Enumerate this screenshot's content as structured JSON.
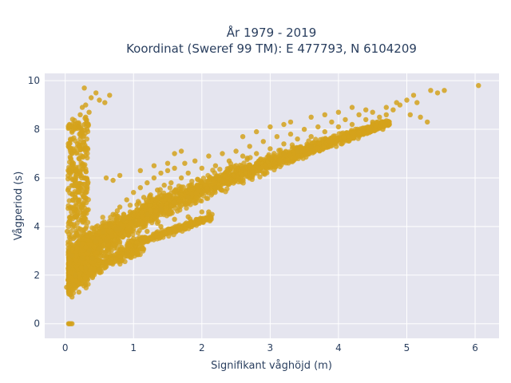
{
  "chart_data": {
    "type": "scatter",
    "title": [
      "År 1979 - 2019",
      "Koordinat (Sweref 99 TM): E 477793, N 6104209"
    ],
    "xlabel": "Signifikant våghöjd (m)",
    "ylabel": "Vågperiod (s)",
    "xlim": [
      -0.3,
      6.35
    ],
    "ylim": [
      -0.6,
      10.3
    ],
    "xticks": [
      0,
      1,
      2,
      3,
      4,
      5,
      6
    ],
    "yticks": [
      0,
      2,
      4,
      6,
      8,
      10
    ],
    "grid": true,
    "legend": "none",
    "colors": {
      "marker": "#d4a21c",
      "plot_bg": "#e5e5ef",
      "grid": "#ffffff",
      "text": "#2a3f5f"
    },
    "series": [
      {
        "marker_color": "#d4a21c",
        "points": [
          [
            0.05,
            0.0
          ],
          [
            0.06,
            0.0
          ],
          [
            0.08,
            0.0
          ],
          [
            0.1,
            0.0
          ],
          [
            0.02,
            1.5
          ],
          [
            0.04,
            1.8
          ],
          [
            0.05,
            2.3
          ],
          [
            0.08,
            1.2
          ],
          [
            0.1,
            1.1
          ],
          [
            0.12,
            1.6
          ],
          [
            0.05,
            3.0
          ],
          [
            0.03,
            3.8
          ],
          [
            0.06,
            4.2
          ],
          [
            0.1,
            2.8
          ],
          [
            0.15,
            2.0
          ],
          [
            0.12,
            3.5
          ],
          [
            0.08,
            4.8
          ],
          [
            0.04,
            5.5
          ],
          [
            0.06,
            6.3
          ],
          [
            0.1,
            7.0
          ],
          [
            0.12,
            6.6
          ],
          [
            0.15,
            5.9
          ],
          [
            0.18,
            7.4
          ],
          [
            0.2,
            8.1
          ],
          [
            0.22,
            8.6
          ],
          [
            0.25,
            8.9
          ],
          [
            0.24,
            7.9
          ],
          [
            0.26,
            7.2
          ],
          [
            0.28,
            8.2
          ],
          [
            0.3,
            8.5
          ],
          [
            0.32,
            8.0
          ],
          [
            0.35,
            8.7
          ],
          [
            0.28,
            9.7
          ],
          [
            0.38,
            9.3
          ],
          [
            0.45,
            9.5
          ],
          [
            0.5,
            9.2
          ],
          [
            0.65,
            9.4
          ],
          [
            0.58,
            9.1
          ],
          [
            0.3,
            9.0
          ],
          [
            0.2,
            6.8
          ],
          [
            0.18,
            5.1
          ],
          [
            0.24,
            6.0
          ],
          [
            0.3,
            5.4
          ],
          [
            0.15,
            4.4
          ],
          [
            0.2,
            3.3
          ],
          [
            0.25,
            2.7
          ],
          [
            0.3,
            2.3
          ],
          [
            0.35,
            3.0
          ],
          [
            0.4,
            2.7
          ],
          [
            0.45,
            3.4
          ],
          [
            0.5,
            3.1
          ],
          [
            0.55,
            3.8
          ],
          [
            0.6,
            3.4
          ],
          [
            0.65,
            4.1
          ],
          [
            0.7,
            4.5
          ],
          [
            0.75,
            3.9
          ],
          [
            0.8,
            4.8
          ],
          [
            0.85,
            4.3
          ],
          [
            0.9,
            5.1
          ],
          [
            0.95,
            4.6
          ],
          [
            1.0,
            5.4
          ],
          [
            1.05,
            4.9
          ],
          [
            1.1,
            5.6
          ],
          [
            1.15,
            5.2
          ],
          [
            1.2,
            5.8
          ],
          [
            1.25,
            5.3
          ],
          [
            1.3,
            6.0
          ],
          [
            1.35,
            5.5
          ],
          [
            1.4,
            6.2
          ],
          [
            1.45,
            5.7
          ],
          [
            1.5,
            6.3
          ],
          [
            1.55,
            5.8
          ],
          [
            1.6,
            6.4
          ],
          [
            1.7,
            6.0
          ],
          [
            1.75,
            6.6
          ],
          [
            1.8,
            6.2
          ],
          [
            1.9,
            6.7
          ],
          [
            2.0,
            6.4
          ],
          [
            2.1,
            6.9
          ],
          [
            2.2,
            6.5
          ],
          [
            2.3,
            7.0
          ],
          [
            2.4,
            6.7
          ],
          [
            2.5,
            7.1
          ],
          [
            2.6,
            6.9
          ],
          [
            2.7,
            7.3
          ],
          [
            2.8,
            7.0
          ],
          [
            2.9,
            7.5
          ],
          [
            3.0,
            7.2
          ],
          [
            3.1,
            7.7
          ],
          [
            3.2,
            7.4
          ],
          [
            3.3,
            7.8
          ],
          [
            3.4,
            7.6
          ],
          [
            3.5,
            8.0
          ],
          [
            3.6,
            7.7
          ],
          [
            3.7,
            8.1
          ],
          [
            3.8,
            7.9
          ],
          [
            3.9,
            8.3
          ],
          [
            4.0,
            8.1
          ],
          [
            4.1,
            8.4
          ],
          [
            4.2,
            8.2
          ],
          [
            4.3,
            8.6
          ],
          [
            4.4,
            8.4
          ],
          [
            4.5,
            8.7
          ],
          [
            4.6,
            8.5
          ],
          [
            4.7,
            8.9
          ],
          [
            4.8,
            8.8
          ],
          [
            4.85,
            9.1
          ],
          [
            4.9,
            9.0
          ],
          [
            5.0,
            9.2
          ],
          [
            5.05,
            8.6
          ],
          [
            5.1,
            9.4
          ],
          [
            5.15,
            9.1
          ],
          [
            5.2,
            8.5
          ],
          [
            5.3,
            8.3
          ],
          [
            5.35,
            9.6
          ],
          [
            5.45,
            9.5
          ],
          [
            5.55,
            9.6
          ],
          [
            6.05,
            9.8
          ],
          [
            4.5,
            8.3
          ],
          [
            4.7,
            8.6
          ],
          [
            4.65,
            8.0
          ],
          [
            4.4,
            8.8
          ],
          [
            4.2,
            8.9
          ],
          [
            0.9,
            2.9
          ],
          [
            1.0,
            3.5
          ],
          [
            1.2,
            3.8
          ],
          [
            1.4,
            4.0
          ],
          [
            1.6,
            4.3
          ],
          [
            1.8,
            4.4
          ],
          [
            2.0,
            4.6
          ],
          [
            2.1,
            4.5
          ],
          [
            1.5,
            6.6
          ],
          [
            1.7,
            7.1
          ],
          [
            1.6,
            7.0
          ],
          [
            1.3,
            6.5
          ],
          [
            1.1,
            6.3
          ],
          [
            0.8,
            6.1
          ],
          [
            0.7,
            5.9
          ],
          [
            0.6,
            6.0
          ],
          [
            3.2,
            8.2
          ],
          [
            3.3,
            8.3
          ],
          [
            3.0,
            8.1
          ],
          [
            2.8,
            7.9
          ],
          [
            2.6,
            7.7
          ],
          [
            3.6,
            8.5
          ],
          [
            3.8,
            8.6
          ],
          [
            4.0,
            8.7
          ],
          [
            2.2,
            6.0
          ],
          [
            2.4,
            6.2
          ],
          [
            2.6,
            6.4
          ],
          [
            2.8,
            6.6
          ],
          [
            3.0,
            6.8
          ],
          [
            3.2,
            7.0
          ],
          [
            3.4,
            7.1
          ],
          [
            3.6,
            7.3
          ],
          [
            2.0,
            5.4
          ],
          [
            2.2,
            5.6
          ],
          [
            1.8,
            5.2
          ],
          [
            1.6,
            5.0
          ],
          [
            1.4,
            4.7
          ],
          [
            1.2,
            4.5
          ],
          [
            1.0,
            4.2
          ],
          [
            0.8,
            3.9
          ],
          [
            2.1,
            4.6
          ],
          [
            2.15,
            4.5
          ],
          [
            0.3,
            1.6
          ],
          [
            0.4,
            1.9
          ],
          [
            0.5,
            2.2
          ],
          [
            0.6,
            2.5
          ],
          [
            0.7,
            2.8
          ],
          [
            0.2,
            1.3
          ]
        ]
      }
    ]
  }
}
